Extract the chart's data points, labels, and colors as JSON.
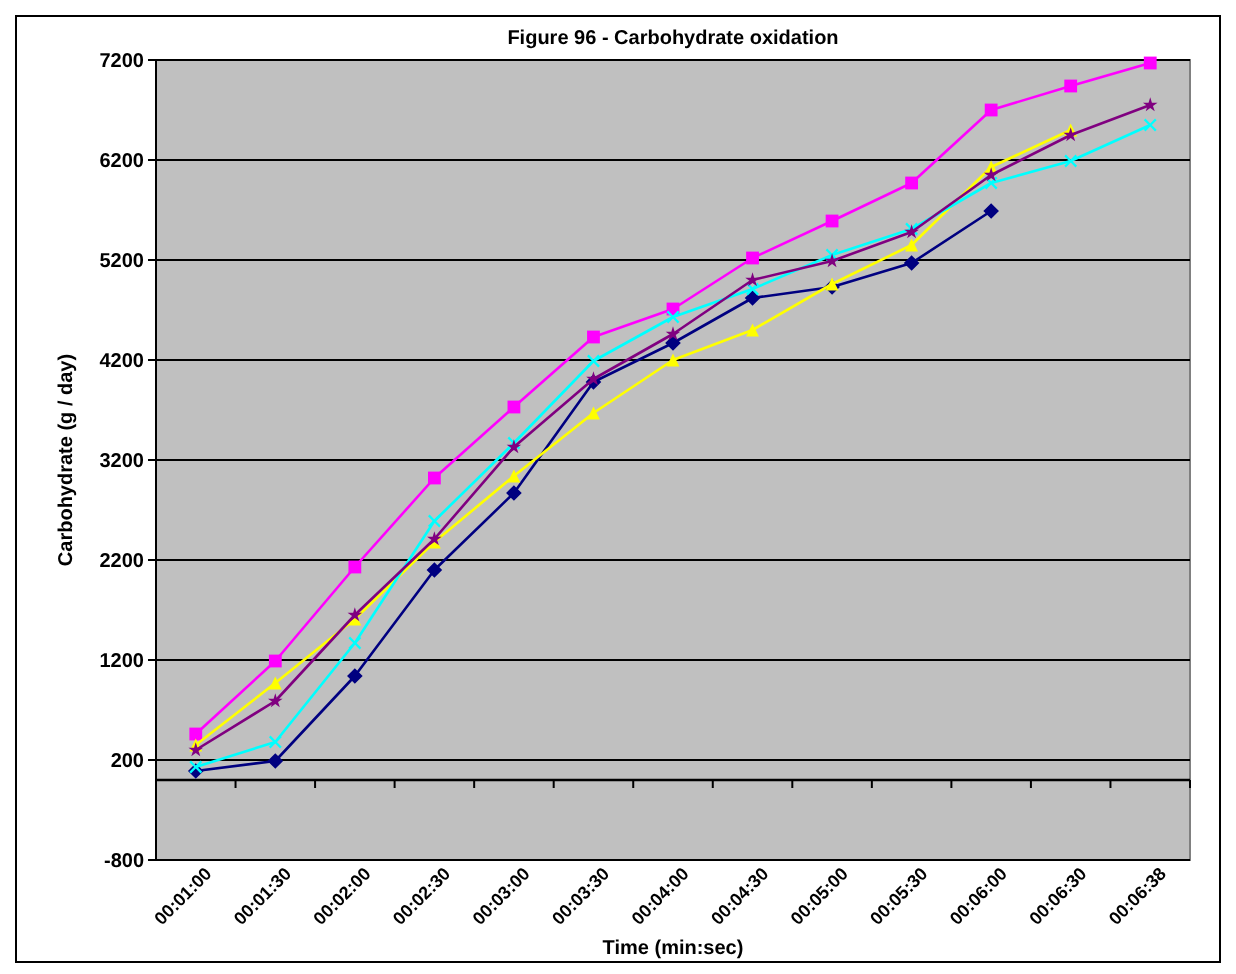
{
  "chart_data": {
    "type": "line",
    "title": "Figure 96 - Carbohydrate oxidation",
    "xlabel": "Time (min:sec)",
    "ylabel": "Carbohydrate (g / day)",
    "categories": [
      "00:01:00",
      "00:01:30",
      "00:02:00",
      "00:02:30",
      "00:03:00",
      "00:03:30",
      "00:04:00",
      "00:04:30",
      "00:05:00",
      "00:05:30",
      "00:06:00",
      "00:06:30",
      "00:06:38"
    ],
    "series": [
      {
        "color": "#000080",
        "marker": "diamond",
        "values": [
          90,
          190,
          1040,
          2100,
          2870,
          3980,
          4370,
          4820,
          4930,
          5170,
          5690,
          null,
          null
        ]
      },
      {
        "color": "#ff00ff",
        "marker": "square",
        "values": [
          460,
          1190,
          2130,
          3020,
          3730,
          4430,
          4710,
          5220,
          5590,
          5970,
          6700,
          6940,
          7170
        ]
      },
      {
        "color": "#ffff00",
        "marker": "triangle",
        "values": [
          350,
          970,
          1610,
          2380,
          3040,
          3670,
          4200,
          4500,
          4960,
          5350,
          6130,
          6500,
          null
        ]
      },
      {
        "color": "#00ffff",
        "marker": "cross",
        "values": [
          130,
          380,
          1370,
          2590,
          3370,
          4190,
          4630,
          4910,
          5250,
          5510,
          5970,
          6190,
          6550
        ]
      },
      {
        "color": "#800080",
        "marker": "star",
        "values": [
          300,
          790,
          1650,
          2410,
          3330,
          4010,
          4460,
          5000,
          5190,
          5480,
          6050,
          6450,
          6750
        ]
      }
    ],
    "ylim": [
      -800,
      7200
    ],
    "yticks": [
      -800,
      200,
      1200,
      2200,
      3200,
      4200,
      5200,
      6200,
      7200
    ],
    "grid": "y",
    "line_style": "solid"
  }
}
